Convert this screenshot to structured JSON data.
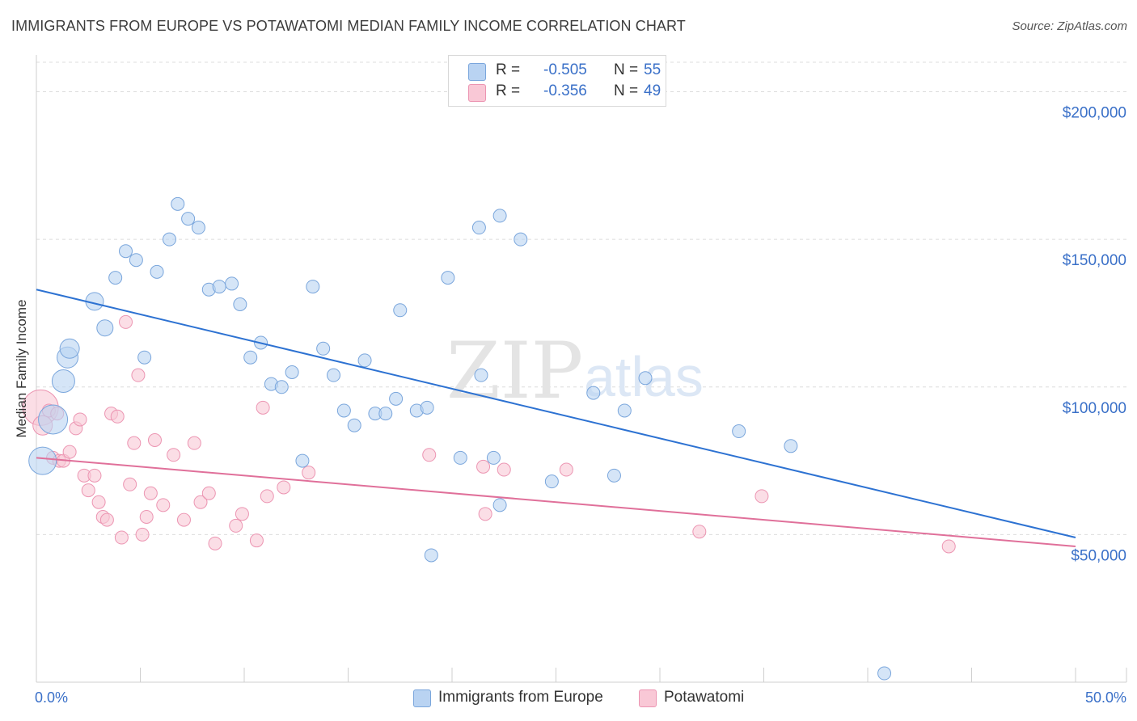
{
  "title": "IMMIGRANTS FROM EUROPE VS POTAWATOMI MEDIAN FAMILY INCOME CORRELATION CHART",
  "source": "Source: ZipAtlas.com",
  "legend": {
    "rows": [
      {
        "r_label": "R =",
        "r_value": "-0.505",
        "n_label": "N =",
        "n_value": "55"
      },
      {
        "r_label": "R =",
        "r_value": "-0.356",
        "n_label": "N =",
        "n_value": "49"
      }
    ]
  },
  "bottom_legend": {
    "series1": "Immigrants from Europe",
    "series2": "Potawatomi"
  },
  "colors": {
    "blue_fill": "#b9d3f2",
    "blue_stroke": "#7aa6dc",
    "blue_line": "#2d72d2",
    "pink_fill": "#f9c8d6",
    "pink_stroke": "#ec95b2",
    "pink_line": "#e0709a",
    "axis_text": "#3a70c8"
  },
  "watermark": {
    "zip": "ZIP",
    "atlas": "atlas"
  },
  "chart_data": {
    "type": "scatter",
    "title": "IMMIGRANTS FROM EUROPE VS POTAWATOMI MEDIAN FAMILY INCOME CORRELATION CHART",
    "xlabel": "",
    "ylabel": "Median Family Income",
    "xlim": [
      0,
      50
    ],
    "ylim": [
      0,
      210000
    ],
    "x_tick_labels": [
      "0.0%",
      "50.0%"
    ],
    "y_ticks": [
      {
        "value": 50000,
        "label": "$50,000"
      },
      {
        "value": 100000,
        "label": "$100,000"
      },
      {
        "value": 150000,
        "label": "$150,000"
      },
      {
        "value": 200000,
        "label": "$200,000"
      }
    ],
    "series": [
      {
        "name": "Immigrants from Europe",
        "r": -0.505,
        "n": 55,
        "trend": {
          "x0": 0,
          "y0": 133000,
          "x1": 50,
          "y1": 49000
        },
        "points": [
          [
            0.3,
            75000
          ],
          [
            0.8,
            89000
          ],
          [
            1.3,
            102000
          ],
          [
            1.5,
            110000
          ],
          [
            1.6,
            113000
          ],
          [
            2.8,
            129000
          ],
          [
            3.3,
            120000
          ],
          [
            3.8,
            137000
          ],
          [
            4.3,
            146000
          ],
          [
            4.8,
            143000
          ],
          [
            5.2,
            110000
          ],
          [
            5.8,
            139000
          ],
          [
            6.4,
            150000
          ],
          [
            6.8,
            162000
          ],
          [
            7.3,
            157000
          ],
          [
            7.8,
            154000
          ],
          [
            8.3,
            133000
          ],
          [
            8.8,
            134000
          ],
          [
            9.4,
            135000
          ],
          [
            9.8,
            128000
          ],
          [
            10.3,
            110000
          ],
          [
            10.8,
            115000
          ],
          [
            11.3,
            101000
          ],
          [
            11.8,
            100000
          ],
          [
            12.3,
            105000
          ],
          [
            12.8,
            75000
          ],
          [
            13.3,
            134000
          ],
          [
            13.8,
            113000
          ],
          [
            14.3,
            104000
          ],
          [
            14.8,
            92000
          ],
          [
            15.3,
            87000
          ],
          [
            15.8,
            109000
          ],
          [
            16.3,
            91000
          ],
          [
            16.8,
            91000
          ],
          [
            17.3,
            96000
          ],
          [
            18.3,
            92000
          ],
          [
            17.5,
            126000
          ],
          [
            18.8,
            93000
          ],
          [
            19.0,
            43000
          ],
          [
            19.8,
            137000
          ],
          [
            20.4,
            76000
          ],
          [
            21.3,
            154000
          ],
          [
            21.4,
            104000
          ],
          [
            22.0,
            76000
          ],
          [
            22.3,
            158000
          ],
          [
            22.3,
            60000
          ],
          [
            23.3,
            150000
          ],
          [
            24.8,
            68000
          ],
          [
            26.8,
            98000
          ],
          [
            27.8,
            70000
          ],
          [
            28.3,
            92000
          ],
          [
            29.3,
            103000
          ],
          [
            33.8,
            85000
          ],
          [
            36.3,
            80000
          ],
          [
            40.8,
            3000
          ]
        ]
      },
      {
        "name": "Potawatomi",
        "r": -0.356,
        "n": 49,
        "trend": {
          "x0": 0,
          "y0": 76000,
          "x1": 50,
          "y1": 46000
        },
        "points": [
          [
            0.2,
            93000
          ],
          [
            0.3,
            87000
          ],
          [
            0.6,
            92000
          ],
          [
            0.8,
            76000
          ],
          [
            1.0,
            91000
          ],
          [
            1.1,
            75000
          ],
          [
            1.3,
            75000
          ],
          [
            1.6,
            78000
          ],
          [
            1.9,
            86000
          ],
          [
            2.1,
            89000
          ],
          [
            2.3,
            70000
          ],
          [
            2.5,
            65000
          ],
          [
            2.8,
            70000
          ],
          [
            3.0,
            61000
          ],
          [
            3.2,
            56000
          ],
          [
            3.4,
            55000
          ],
          [
            3.6,
            91000
          ],
          [
            3.9,
            90000
          ],
          [
            4.1,
            49000
          ],
          [
            4.3,
            122000
          ],
          [
            4.5,
            67000
          ],
          [
            4.7,
            81000
          ],
          [
            4.9,
            104000
          ],
          [
            5.1,
            50000
          ],
          [
            5.3,
            56000
          ],
          [
            5.5,
            64000
          ],
          [
            5.7,
            82000
          ],
          [
            6.1,
            60000
          ],
          [
            6.6,
            77000
          ],
          [
            7.1,
            55000
          ],
          [
            7.6,
            81000
          ],
          [
            7.9,
            61000
          ],
          [
            8.3,
            64000
          ],
          [
            8.6,
            47000
          ],
          [
            9.6,
            53000
          ],
          [
            9.9,
            57000
          ],
          [
            10.6,
            48000
          ],
          [
            10.9,
            93000
          ],
          [
            11.1,
            63000
          ],
          [
            11.9,
            66000
          ],
          [
            13.1,
            71000
          ],
          [
            18.9,
            77000
          ],
          [
            21.5,
            73000
          ],
          [
            21.6,
            57000
          ],
          [
            22.5,
            72000
          ],
          [
            25.5,
            72000
          ],
          [
            31.9,
            51000
          ],
          [
            34.9,
            63000
          ],
          [
            43.9,
            46000
          ]
        ]
      }
    ]
  }
}
